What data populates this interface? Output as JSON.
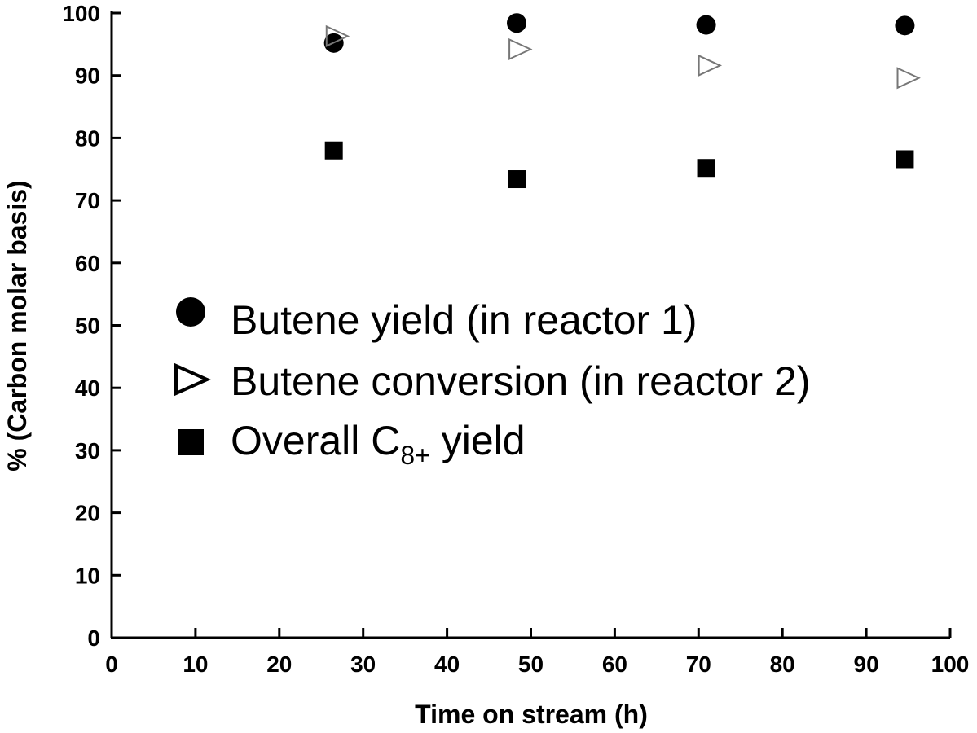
{
  "chart_data": {
    "type": "scatter",
    "xlabel": "Time on stream (h)",
    "ylabel": "% (Carbon molar basis)",
    "xlim": [
      0,
      100
    ],
    "ylim": [
      0,
      100
    ],
    "xticks": [
      "0",
      "10",
      "20",
      "30",
      "40",
      "50",
      "60",
      "70",
      "80",
      "90",
      "100"
    ],
    "yticks": [
      "0",
      "10",
      "20",
      "30",
      "40",
      "50",
      "60",
      "70",
      "80",
      "90",
      "100"
    ],
    "grid": false,
    "legend_position": "center-left",
    "series": [
      {
        "name": "Butene yield (in reactor 1)",
        "marker": "filled-circle",
        "color": "#000000",
        "points": [
          [
            26.5,
            95.2
          ],
          [
            48.3,
            98.4
          ],
          [
            70.9,
            98.1
          ],
          [
            94.6,
            98.0
          ]
        ]
      },
      {
        "name": "Butene conversion (in reactor 2)",
        "marker": "open-triangle-right",
        "color": "#000000",
        "points": [
          [
            26.8,
            96.3
          ],
          [
            48.6,
            94.2
          ],
          [
            71.2,
            91.6
          ],
          [
            94.9,
            89.6
          ]
        ]
      },
      {
        "name": "Overall C8+ yield",
        "name_parts": {
          "pre": "Overall C",
          "sub": "8+",
          "post": " yield"
        },
        "marker": "filled-square",
        "color": "#000000",
        "points": [
          [
            26.5,
            78.0
          ],
          [
            48.3,
            73.4
          ],
          [
            70.9,
            75.2
          ],
          [
            94.6,
            76.6
          ]
        ]
      }
    ]
  }
}
